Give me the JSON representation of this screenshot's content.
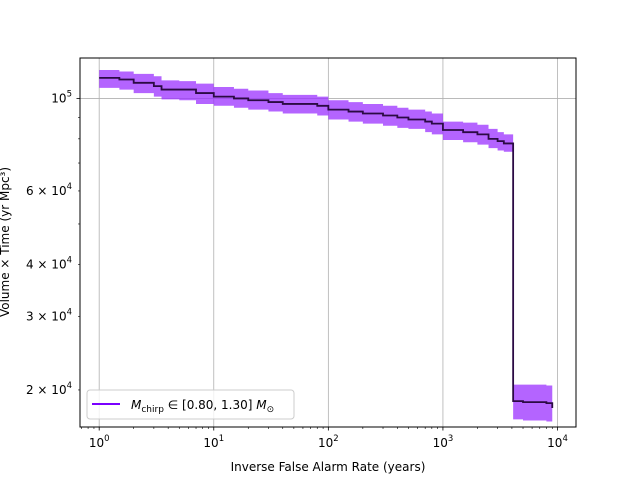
{
  "chart_data": {
    "type": "line",
    "xlabel": "Inverse False Alarm Rate (years)",
    "ylabel": "Volume × Time (yr Mpc³)",
    "xscale": "log",
    "yscale": "log",
    "xlim": [
      0.68,
      14500
    ],
    "ylim": [
      16300,
      125000
    ],
    "grid": "major",
    "legend_position": "lower-left",
    "xticks": [
      {
        "value": 1,
        "base": "10",
        "exp": "0"
      },
      {
        "value": 10,
        "base": "10",
        "exp": "1"
      },
      {
        "value": 100,
        "base": "10",
        "exp": "2"
      },
      {
        "value": 1000,
        "base": "10",
        "exp": "3"
      },
      {
        "value": 10000,
        "base": "10",
        "exp": "4"
      }
    ],
    "yticks": [
      {
        "value": 20000,
        "mant": "2 × 10",
        "exp": "4"
      },
      {
        "value": 30000,
        "mant": "3 × 10",
        "exp": "4"
      },
      {
        "value": 40000,
        "mant": "4 × 10",
        "exp": "4"
      },
      {
        "value": 60000,
        "mant": "6 × 10",
        "exp": "4"
      },
      {
        "value": 100000,
        "mant": "10",
        "exp": "5"
      }
    ],
    "series": [
      {
        "name": "M_chirp ∈ [0.80, 1.30] M_⊙",
        "legend_math": {
          "prefix": "M",
          "sub": "chirp",
          "range": " ∈ [0.80, 1.30]",
          "unit": "M",
          "unit_sub": "⊙"
        },
        "line_color": "#2b0a44",
        "band_color": "#9b30ff",
        "x": [
          1,
          1.5,
          2,
          3,
          3.5,
          5,
          7,
          10,
          15,
          20,
          30,
          40,
          60,
          80,
          100,
          150,
          200,
          300,
          400,
          500,
          700,
          800,
          1000,
          1500,
          2000,
          2500,
          3000,
          3400,
          3500,
          4100,
          5000,
          7000,
          8000,
          9000
        ],
        "y": [
          112000,
          111000,
          109000,
          107000,
          105000,
          105000,
          103000,
          101000,
          100000,
          99000,
          98000,
          97000,
          97000,
          96000,
          94000,
          93000,
          92000,
          91000,
          90000,
          89000,
          88000,
          87000,
          84000,
          83000,
          82000,
          80000,
          79000,
          78000,
          78000,
          18800,
          18700,
          18700,
          18600,
          18100
        ],
        "lower": [
          106000,
          105000,
          103000,
          101000,
          99500,
          99000,
          97000,
          96000,
          95000,
          94000,
          93000,
          92000,
          92000,
          91000,
          89000,
          88000,
          87000,
          86000,
          85000,
          84500,
          83000,
          82000,
          79500,
          78500,
          77500,
          76000,
          75000,
          74500,
          74500,
          17000,
          16900,
          16900,
          16800,
          16400
        ],
        "upper": [
          117000,
          116000,
          114500,
          113000,
          110500,
          110000,
          108500,
          106500,
          105500,
          104500,
          103000,
          102000,
          102000,
          101000,
          99000,
          98000,
          97000,
          96000,
          95000,
          94000,
          93000,
          92000,
          88000,
          87500,
          86500,
          84500,
          83000,
          82000,
          82000,
          20600,
          20600,
          20600,
          20500,
          20100
        ]
      }
    ]
  }
}
